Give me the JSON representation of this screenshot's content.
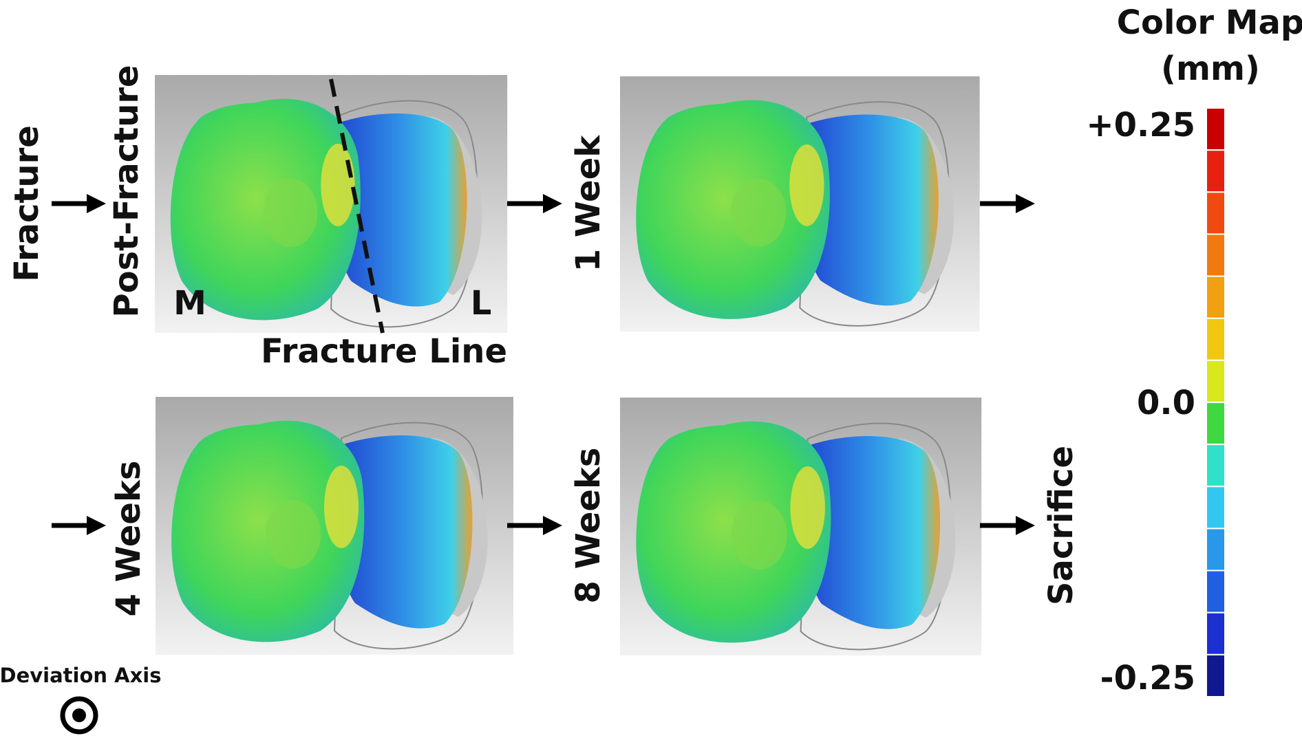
{
  "header": {
    "title": "Color Map",
    "unit": "(mm)"
  },
  "color_bar": {
    "labels": [
      "+0.25",
      "0.0",
      "-0.25"
    ]
  },
  "stages": {
    "fracture": "Fracture",
    "post_fracture": "Post-Fracture",
    "week1": "1 Week",
    "week4": "4 Weeks",
    "week8": "8 Weeks",
    "sacrifice": "Sacrifice"
  },
  "annotations": {
    "medial": "M",
    "lateral": "L",
    "fracture_line": "Fracture Line"
  },
  "legend": {
    "deviation_axis": "Deviation Axis"
  }
}
